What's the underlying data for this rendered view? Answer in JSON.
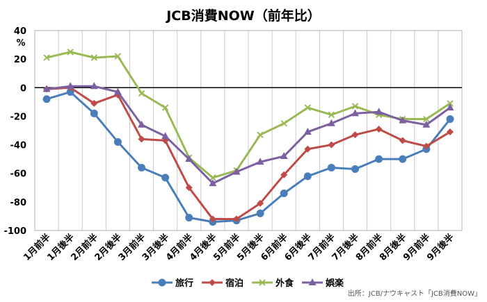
{
  "chart_data": {
    "type": "line",
    "title": "JCB消費NOW（前年比）",
    "ylabel": "%",
    "xlabel": "",
    "ylim": [
      -100,
      40
    ],
    "yticks": [
      40,
      20,
      0,
      -20,
      -40,
      -60,
      -80,
      -100
    ],
    "grid": "vertical",
    "legend": "bottom",
    "categories": [
      "1月前半",
      "1月後半",
      "2月前半",
      "2月後半",
      "3月前半",
      "3月後半",
      "4月前半",
      "4月後半",
      "5月前半",
      "5月後半",
      "6月前半",
      "6月後半",
      "7月前半",
      "7月後半",
      "8月前半",
      "8月後半",
      "9月前半",
      "9月後半"
    ],
    "series": [
      {
        "name": "旅行",
        "color": "#4A7EBB",
        "marker": "circle",
        "values": [
          -8,
          -3,
          -18,
          -38,
          -56,
          -63,
          -91,
          -94,
          -93,
          -88,
          -74,
          -62,
          -56,
          -57,
          -50,
          -50,
          -43,
          -22
        ]
      },
      {
        "name": "宿泊",
        "color": "#BE4B48",
        "marker": "diamond",
        "values": [
          -1,
          0,
          -11,
          -5,
          -36,
          -37,
          -70,
          -92,
          -92,
          -81,
          -61,
          -43,
          -40,
          -33,
          -29,
          -37,
          -41,
          -31
        ]
      },
      {
        "name": "外食",
        "color": "#98B954",
        "marker": "x",
        "values": [
          21,
          25,
          21,
          22,
          -4,
          -14,
          -49,
          -63,
          -58,
          -33,
          -25,
          -14,
          -19,
          -13,
          -19,
          -22,
          -22,
          -11
        ]
      },
      {
        "name": "娯楽",
        "color": "#7D60A0",
        "marker": "triangle",
        "values": [
          -1,
          1,
          1,
          -3,
          -26,
          -34,
          -50,
          -67,
          -59,
          -52,
          -48,
          -31,
          -25,
          -18,
          -17,
          -23,
          -26,
          -14
        ]
      }
    ]
  },
  "source_note": "出所：JCB/ナウキャスト「JCB消費NOW」"
}
